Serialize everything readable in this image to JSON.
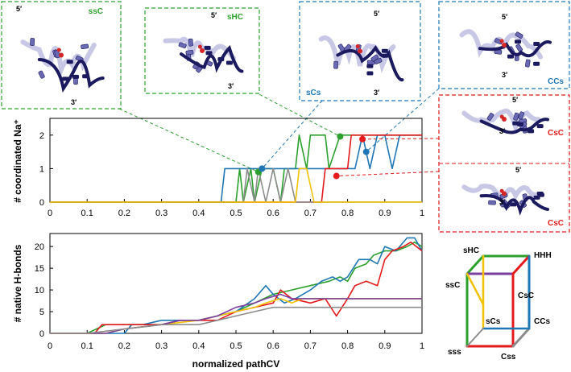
{
  "colors": {
    "green": "#2ca02c",
    "blue": "#1f77b4",
    "red": "#e41a1c",
    "yellow": "#f2c200",
    "gray": "#8c8c8c",
    "purple": "#7b3fa0",
    "rna_dark": "#1c1a5e",
    "rna_mid": "#6a6ab4",
    "rna_light": "#c8c8e6",
    "ion": "#d62728"
  },
  "chart_data": [
    {
      "type": "line",
      "id": "na",
      "xlabel": "",
      "ylabel": "# coordinated Na⁺",
      "xlim": [
        0,
        1
      ],
      "ylim": [
        0,
        2.5
      ],
      "xticks": [
        "0",
        "0.1",
        "0.2",
        "0.3",
        "0.4",
        "0.5",
        "0.6",
        "0.7",
        "0.8",
        "0.9",
        "1"
      ],
      "yticks": [
        "0",
        "1",
        "2"
      ],
      "series": [
        {
          "color": "green",
          "x": [
            0,
            0.5,
            0.51,
            0.52,
            0.54,
            0.55,
            0.57,
            0.59,
            0.6,
            0.62,
            0.63,
            0.64,
            0.66,
            0.67,
            0.69,
            0.7,
            0.72,
            0.74,
            0.75,
            0.78,
            0.8,
            0.83,
            0.86,
            0.88,
            0.9,
            0.93,
            0.96,
            1
          ],
          "y": [
            0,
            0,
            1,
            0,
            1,
            0,
            1,
            1,
            1,
            0,
            1,
            1,
            1,
            2,
            1,
            2,
            2,
            2,
            1,
            2,
            2,
            2,
            2,
            2,
            2,
            2,
            2,
            2
          ]
        },
        {
          "color": "blue",
          "x": [
            0,
            0.46,
            0.47,
            0.5,
            0.52,
            0.55,
            0.58,
            0.6,
            0.62,
            0.66,
            0.68,
            0.7,
            0.72,
            0.75,
            0.78,
            0.8,
            0.82,
            0.84,
            0.86,
            0.88,
            0.9,
            0.92,
            0.94,
            0.96,
            0.98,
            1
          ],
          "y": [
            0,
            0,
            1,
            1,
            1,
            1,
            1,
            1,
            1,
            1,
            1,
            1,
            1,
            1,
            1,
            1,
            1,
            2,
            1,
            2,
            2,
            1,
            2,
            2,
            2,
            2
          ]
        },
        {
          "color": "red",
          "x": [
            0,
            0.73,
            0.74,
            0.76,
            0.78,
            0.8,
            0.81,
            0.83,
            0.85,
            0.87,
            0.89,
            0.91,
            0.93,
            0.96,
            0.98,
            1
          ],
          "y": [
            0,
            0,
            1,
            1,
            1,
            1,
            2,
            2,
            2,
            2,
            2,
            2,
            2,
            2,
            2,
            2
          ]
        },
        {
          "color": "gray",
          "x": [
            0,
            0.52,
            0.53,
            0.55,
            0.56,
            0.58,
            0.6,
            0.62,
            0.64,
            0.66,
            1
          ],
          "y": [
            0,
            0,
            1,
            0,
            1,
            0,
            1,
            0,
            1,
            0,
            0
          ]
        },
        {
          "color": "yellow",
          "x": [
            0,
            0.66,
            0.67,
            0.69,
            0.71,
            0.72,
            1
          ],
          "y": [
            0,
            0,
            1,
            1,
            0,
            0,
            0
          ]
        }
      ],
      "markers": [
        {
          "color": "green",
          "x": 0.56,
          "y": 0.9
        },
        {
          "color": "blue",
          "x": 0.57,
          "y": 1.0
        },
        {
          "color": "green",
          "x": 0.78,
          "y": 1.96
        },
        {
          "color": "red",
          "x": 0.84,
          "y": 1.88
        },
        {
          "color": "blue",
          "x": 0.85,
          "y": 1.5
        },
        {
          "color": "red",
          "x": 0.77,
          "y": 0.78
        }
      ]
    },
    {
      "type": "line",
      "id": "hb",
      "xlabel": "normalized pathCV",
      "ylabel": "# native H-bonds",
      "xlim": [
        0,
        1
      ],
      "ylim": [
        0,
        23
      ],
      "xticks": [
        "0",
        "0.1",
        "0.2",
        "0.3",
        "0.4",
        "0.5",
        "0.6",
        "0.7",
        "0.8",
        "0.9",
        "1"
      ],
      "yticks": [
        "0",
        "5",
        "10",
        "15",
        "20"
      ],
      "series": [
        {
          "color": "green",
          "x": [
            0,
            0.1,
            0.15,
            0.2,
            0.25,
            0.3,
            0.35,
            0.4,
            0.45,
            0.5,
            0.55,
            0.6,
            0.65,
            0.7,
            0.75,
            0.78,
            0.8,
            0.82,
            0.85,
            0.87,
            0.9,
            0.93,
            0.96,
            0.98,
            1
          ],
          "y": [
            0,
            0,
            2,
            2,
            2,
            2,
            3,
            3,
            4,
            5,
            7,
            9,
            10,
            11,
            12,
            13,
            12,
            15,
            16,
            18,
            19,
            19,
            20,
            21,
            20
          ]
        },
        {
          "color": "blue",
          "x": [
            0,
            0.2,
            0.22,
            0.25,
            0.3,
            0.35,
            0.4,
            0.45,
            0.5,
            0.55,
            0.58,
            0.6,
            0.63,
            0.66,
            0.7,
            0.73,
            0.76,
            0.78,
            0.8,
            0.83,
            0.86,
            0.88,
            0.9,
            0.93,
            0.96,
            0.98,
            1
          ],
          "y": [
            0,
            0,
            2,
            2,
            3,
            3,
            3,
            4,
            5,
            8,
            11,
            9,
            7,
            8,
            10,
            12,
            13,
            12,
            13,
            17,
            17,
            16,
            20,
            19,
            22,
            22,
            19
          ]
        },
        {
          "color": "red",
          "x": [
            0,
            0.12,
            0.14,
            0.2,
            0.25,
            0.3,
            0.35,
            0.4,
            0.45,
            0.5,
            0.55,
            0.6,
            0.62,
            0.65,
            0.7,
            0.74,
            0.77,
            0.8,
            0.82,
            0.85,
            0.88,
            0.9,
            0.92,
            0.95,
            0.97,
            1
          ],
          "y": [
            0,
            0,
            2,
            2,
            2,
            2,
            3,
            3,
            3,
            5,
            6,
            7,
            10,
            8,
            7,
            8,
            4,
            8,
            11,
            12,
            11,
            17,
            19,
            20,
            21,
            19
          ]
        },
        {
          "color": "yellow",
          "x": [
            0,
            0.15,
            0.2,
            0.3,
            0.4,
            0.45,
            0.5,
            0.55,
            0.58,
            0.62,
            0.65,
            0.68,
            1
          ],
          "y": [
            0,
            0,
            1,
            2,
            3,
            4,
            5,
            6,
            7,
            8,
            7,
            8,
            8
          ]
        },
        {
          "color": "purple",
          "x": [
            0,
            0.15,
            0.2,
            0.3,
            0.35,
            0.4,
            0.45,
            0.5,
            0.55,
            0.58,
            0.62,
            0.65,
            1
          ],
          "y": [
            0,
            0,
            1,
            2,
            3,
            3,
            4,
            6,
            7,
            8,
            9,
            8,
            8
          ]
        },
        {
          "color": "gray",
          "x": [
            0,
            0.1,
            0.2,
            0.3,
            0.4,
            0.45,
            0.5,
            0.55,
            0.6,
            1
          ],
          "y": [
            0,
            0,
            1,
            2,
            2,
            3,
            4,
            5,
            6,
            6
          ]
        }
      ]
    }
  ],
  "panels": [
    {
      "id": "ssC",
      "label": "ssC",
      "label_color": "green",
      "five": "5′",
      "three": "3′"
    },
    {
      "id": "sHC",
      "label": "sHC",
      "label_color": "green",
      "five": "5′",
      "three": "3′"
    },
    {
      "id": "sCs",
      "label": "sCs",
      "label_color": "blue",
      "five": "5′",
      "three": "3′"
    },
    {
      "id": "CCs",
      "label": "CCs",
      "label_color": "blue",
      "five": "5′",
      "three": "3′"
    },
    {
      "id": "CsC",
      "label": "CsC",
      "label_color": "red",
      "five": "5′",
      "three": "3′"
    }
  ],
  "cube": {
    "labels": [
      "sHC",
      "HHH",
      "ssC",
      "CsC",
      "sCs",
      "CCs",
      "sss",
      "Css"
    ]
  }
}
